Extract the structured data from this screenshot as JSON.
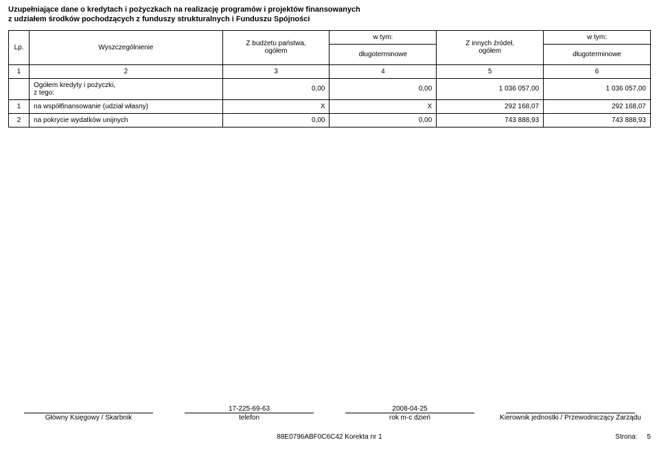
{
  "title_line1": "Uzupełniające dane o kredytach i pożyczkach na realizację programów i projektów finansowanych",
  "title_line2": "z udziałem środków pochodzących z funduszy strukturalnych i Funduszu Spójności",
  "header": {
    "lp": "Lp.",
    "desc": "Wyszczególnienie",
    "col3_top": "Z budżetu państwa,",
    "col3_bot": "ogółem",
    "col4_top": "w tym:",
    "col4_bot": "długoterminowe",
    "col5_top": "Z innych źródeł,",
    "col5_bot": "ogółem",
    "col6_top": "w tym:",
    "col6_bot": "długoterminowe"
  },
  "numrow": {
    "c1": "1",
    "c2": "2",
    "c3": "3",
    "c4": "4",
    "c5": "5",
    "c6": "6"
  },
  "rows": [
    {
      "lp": "",
      "desc_l1": "Ogółem kredyty i pożyczki,",
      "desc_l2": "z tego:",
      "v3": "0,00",
      "v4": "0,00",
      "v5": "1 036 057,00",
      "v6": "1 036 057,00"
    },
    {
      "lp": "1",
      "desc": "na współfinansowanie (udział własny)",
      "v3": "X",
      "v4": "X",
      "v5": "292 168,07",
      "v6": "292 168,07"
    },
    {
      "lp": "2",
      "desc": "na pokrycie wydatków unijnych",
      "v3": "0,00",
      "v4": "0,00",
      "v5": "743 888,93",
      "v6": "743 888,93"
    }
  ],
  "footer": {
    "phone": "17-225-69-63",
    "date": "2008-04-25",
    "sig1": "Główny Księgowy / Skarbnik",
    "sig2": "telefon",
    "sig3": "rok  m-c  dzień",
    "sig4": "Kierownik jednostki / Przewodniczący Zarządu",
    "doc_id": "88E0796ABF0C6C42 Korekta nr 1",
    "page_label": "Strona:",
    "page_num": "5"
  }
}
